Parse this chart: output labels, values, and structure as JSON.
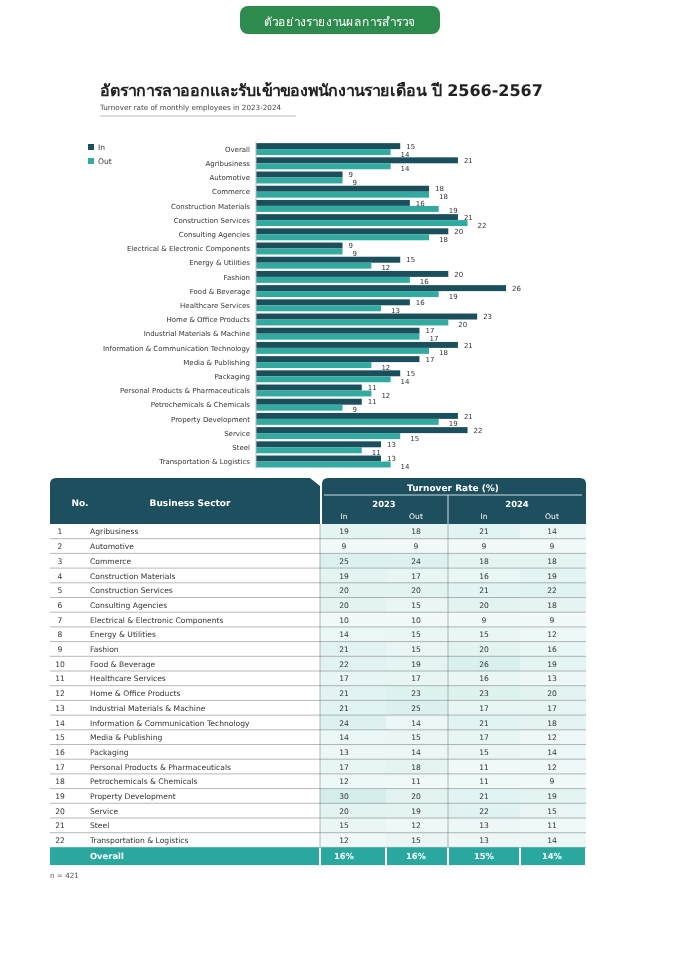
{
  "chart_data": [
    {
      "type": "bar",
      "orientation": "horizontal",
      "title": "อัตราการลาออกและรับเข้าของพนักงานรายเดือน ปี 2566-2567",
      "subtitle": "Turnover rate of monthly employees in 2023-2024",
      "annotations": [
        "ตัวอย่างรายงานผลการสำรวจ"
      ],
      "legend": "top left",
      "data_labels": true,
      "relative": false,
      "categories": [
        "Overall",
        "Agribusiness",
        "Automotive",
        "Commerce",
        "Construction Materials",
        "Construction Services",
        "Consulting Agencies",
        "Electrical & Electronic Components",
        "Energy & Utilities",
        "Fashion",
        "Food & Beverage",
        "Healthcare Services",
        "Home & Office Products",
        "Industrial Materials & Machine",
        "Information & Communication Technology",
        "Media & Publishing",
        "Packaging",
        "Personal Products & Pharmaceuticals",
        "Petrochemicals & Chemicals",
        "Property Development",
        "Service",
        "Steel",
        "Transportation & Logistics"
      ],
      "series": [
        {
          "name": "In",
          "color": "#1b4f5c",
          "values": [
            15,
            21,
            9,
            18,
            16,
            21,
            20,
            9,
            15,
            20,
            26,
            16,
            23,
            17,
            21,
            17,
            15,
            11,
            11,
            21,
            22,
            13,
            13
          ]
        },
        {
          "name": "Out",
          "color": "#33aaa0",
          "values": [
            14,
            14,
            9,
            18,
            19,
            22,
            18,
            9,
            12,
            16,
            19,
            13,
            20,
            17,
            18,
            12,
            14,
            12,
            9,
            19,
            15,
            11,
            14
          ]
        }
      ]
    },
    {
      "type": "heatmap",
      "data_labels": true,
      "title": "Turnover Rate (%)",
      "ylabel": "Business Sector",
      "annotations": [
        "No.",
        "2023",
        "2024",
        "n = 421"
      ],
      "categories": [
        "In",
        "Out",
        "In",
        "Out"
      ],
      "y2_categories": [
        "1",
        "2",
        "3",
        "4",
        "5",
        "6",
        "7",
        "8",
        "9",
        "10",
        "11",
        "12",
        "13",
        "14",
        "15",
        "16",
        "17",
        "18",
        "19",
        "20",
        "21",
        "22",
        null
      ],
      "y_categories": [
        "Agribusiness",
        "Automotive",
        "Commerce",
        "Construction Materials",
        "Construction Services",
        "Consulting Agencies",
        "Electrical & Electronic Components",
        "Energy & Utilities",
        "Fashion",
        "Food & Beverage",
        "Healthcare Services",
        "Home & Office Products",
        "Industrial Materials & Machine",
        "Information & Communication Technology",
        "Media & Publishing",
        "Packaging",
        "Personal Products & Pharmaceuticals",
        "Petrochemicals & Chemicals",
        "Property Development",
        "Service",
        "Steel",
        "Transportation & Logistics",
        "Overall"
      ],
      "cells": [
        [
          19,
          18,
          21,
          14
        ],
        [
          9,
          9,
          9,
          9
        ],
        [
          25,
          24,
          18,
          18
        ],
        [
          19,
          17,
          16,
          19
        ],
        [
          20,
          20,
          21,
          22
        ],
        [
          20,
          15,
          20,
          18
        ],
        [
          10,
          10,
          9,
          9
        ],
        [
          14,
          15,
          15,
          12
        ],
        [
          21,
          15,
          20,
          16
        ],
        [
          22,
          19,
          26,
          19
        ],
        [
          17,
          17,
          16,
          13
        ],
        [
          21,
          23,
          23,
          20
        ],
        [
          21,
          25,
          17,
          17
        ],
        [
          24,
          14,
          21,
          18
        ],
        [
          14,
          15,
          17,
          12
        ],
        [
          13,
          14,
          15,
          14
        ],
        [
          17,
          18,
          11,
          12
        ],
        [
          12,
          11,
          11,
          9
        ],
        [
          30,
          20,
          21,
          19
        ],
        [
          20,
          19,
          22,
          15
        ],
        [
          15,
          12,
          13,
          11
        ],
        [
          12,
          15,
          13,
          14
        ],
        [
          16,
          16,
          15,
          14
        ]
      ],
      "cell_labels": [
        [
          "19",
          "18",
          "21",
          "14"
        ],
        [
          "9",
          "9",
          "9",
          "9"
        ],
        [
          "25",
          "24",
          "18",
          "18"
        ],
        [
          "19",
          "17",
          "16",
          "19"
        ],
        [
          "20",
          "20",
          "21",
          "22"
        ],
        [
          "20",
          "15",
          "20",
          "18"
        ],
        [
          "10",
          "10",
          "9",
          "9"
        ],
        [
          "14",
          "15",
          "15",
          "12"
        ],
        [
          "21",
          "15",
          "20",
          "16"
        ],
        [
          "22",
          "19",
          "26",
          "19"
        ],
        [
          "17",
          "17",
          "16",
          "13"
        ],
        [
          "21",
          "23",
          "23",
          "20"
        ],
        [
          "21",
          "25",
          "17",
          "17"
        ],
        [
          "24",
          "14",
          "21",
          "18"
        ],
        [
          "14",
          "15",
          "17",
          "12"
        ],
        [
          "13",
          "14",
          "15",
          "14"
        ],
        [
          "17",
          "18",
          "11",
          "12"
        ],
        [
          "12",
          "11",
          "11",
          "9"
        ],
        [
          "30",
          "20",
          "21",
          "19"
        ],
        [
          "20",
          "19",
          "22",
          "15"
        ],
        [
          "15",
          "12",
          "13",
          "11"
        ],
        [
          "12",
          "15",
          "13",
          "14"
        ],
        [
          "16%",
          "16%",
          "15%",
          "14%"
        ]
      ]
    }
  ]
}
